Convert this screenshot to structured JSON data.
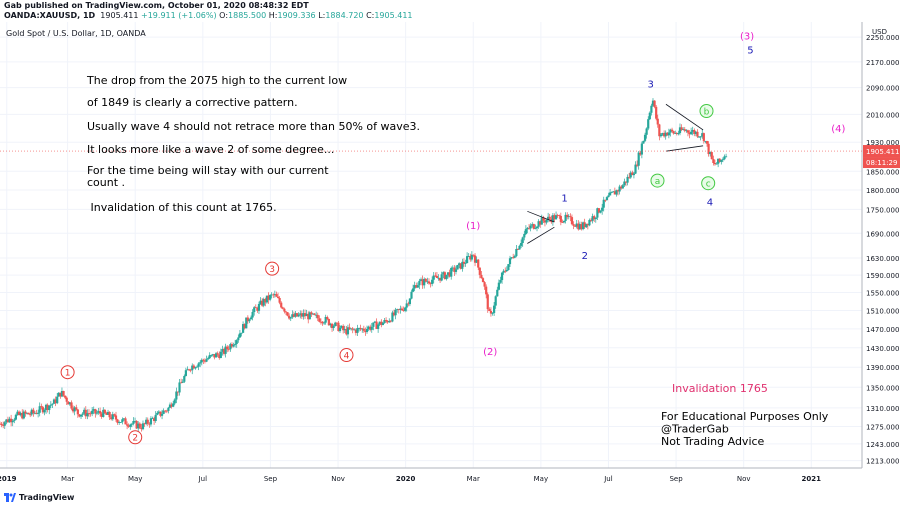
{
  "header": {
    "publisher_line": "Gab published on TradingView.com, October 01, 2020 08:48:32 EDT",
    "symbol": "OANDA:XAUUSD, 1D",
    "last": "1905.411",
    "change": "+19.911 (+1.06%)",
    "o_label": "O:",
    "o_val": "1885.500",
    "h_label": "H:",
    "h_val": "1909.336",
    "l_label": "L:",
    "l_val": "1884.720",
    "c_label": "C:",
    "c_val": "1905.411"
  },
  "footer": {
    "logo_text": "TradingView"
  },
  "colors": {
    "up": "#26a69a",
    "down": "#ef5350",
    "magenta": "#e91ec9",
    "blue": "#1a1ab5",
    "red_circle": "#e53935",
    "green_circle": "#43c943",
    "invalid": "#e0306e"
  },
  "chart_data": {
    "type": "candlestick",
    "title": "Gold Spot / U.S. Dollar, 1D, OANDA",
    "currency_label": "USD",
    "ylim": [
      1200,
      2300
    ],
    "y_ticks": [
      1213,
      1243,
      1275,
      1310,
      1350,
      1390,
      1430,
      1470,
      1510,
      1550,
      1590,
      1630,
      1690,
      1750,
      1800,
      1850,
      1930,
      2010,
      2090,
      2170,
      2250
    ],
    "y_tick_labels": [
      "1213.000",
      "1243.000",
      "1275.000",
      "1310.000",
      "1350.000",
      "1390.000",
      "1430.000",
      "1470.000",
      "1510.000",
      "1550.000",
      "1590.000",
      "1630.000",
      "1690.000",
      "1750.000",
      "1800.000",
      "1850.000",
      "1930.000",
      "2010.000",
      "2090.000",
      "2170.000",
      "2250.000"
    ],
    "x_range_months": [
      0,
      25.5
    ],
    "x_ticks": [
      {
        "m": 0.2,
        "label": "2019"
      },
      {
        "m": 2,
        "label": "Mar"
      },
      {
        "m": 4,
        "label": "May"
      },
      {
        "m": 6,
        "label": "Jul"
      },
      {
        "m": 8,
        "label": "Sep"
      },
      {
        "m": 10,
        "label": "Nov"
      },
      {
        "m": 12,
        "label": "2020"
      },
      {
        "m": 14,
        "label": "Mar"
      },
      {
        "m": 16,
        "label": "May"
      },
      {
        "m": 18,
        "label": "Jul"
      },
      {
        "m": 20,
        "label": "Sep"
      },
      {
        "m": 22,
        "label": "Nov"
      },
      {
        "m": 24,
        "label": "2021"
      }
    ],
    "price_path": [
      [
        0,
        1280
      ],
      [
        0.5,
        1295
      ],
      [
        1,
        1300
      ],
      [
        1.6,
        1320
      ],
      [
        1.8,
        1340
      ],
      [
        2.3,
        1300
      ],
      [
        3,
        1300
      ],
      [
        3.6,
        1285
      ],
      [
        4.2,
        1275
      ],
      [
        5,
        1310
      ],
      [
        5.6,
        1390
      ],
      [
        6.2,
        1410
      ],
      [
        6.6,
        1420
      ],
      [
        7,
        1450
      ],
      [
        7.4,
        1500
      ],
      [
        7.8,
        1530
      ],
      [
        8.1,
        1545
      ],
      [
        8.6,
        1495
      ],
      [
        9,
        1500
      ],
      [
        9.6,
        1490
      ],
      [
        10.2,
        1465
      ],
      [
        10.8,
        1470
      ],
      [
        11.4,
        1485
      ],
      [
        12,
        1520
      ],
      [
        12.3,
        1570
      ],
      [
        12.8,
        1580
      ],
      [
        13.2,
        1590
      ],
      [
        13.6,
        1610
      ],
      [
        14,
        1640
      ],
      [
        14.3,
        1575
      ],
      [
        14.5,
        1490
      ],
      [
        14.8,
        1580
      ],
      [
        15.2,
        1640
      ],
      [
        15.6,
        1700
      ],
      [
        16,
        1720
      ],
      [
        16.4,
        1730
      ],
      [
        16.8,
        1725
      ],
      [
        17.2,
        1705
      ],
      [
        17.6,
        1735
      ],
      [
        18,
        1780
      ],
      [
        18.4,
        1810
      ],
      [
        18.8,
        1860
      ],
      [
        19.1,
        1960
      ],
      [
        19.3,
        2060
      ],
      [
        19.5,
        1950
      ],
      [
        19.8,
        1960
      ],
      [
        20,
        1955
      ],
      [
        20.2,
        1965
      ],
      [
        20.5,
        1960
      ],
      [
        20.8,
        1950
      ],
      [
        21.1,
        1868
      ],
      [
        21.3,
        1875
      ],
      [
        21.5,
        1905
      ]
    ],
    "labels": [
      {
        "text": "1",
        "style": "red-circle",
        "m": 2.0,
        "price": 1380
      },
      {
        "text": "2",
        "style": "red-circle",
        "m": 4.0,
        "price": 1255
      },
      {
        "text": "3",
        "style": "red-circle",
        "m": 8.05,
        "price": 1605
      },
      {
        "text": "4",
        "style": "red-circle",
        "m": 10.25,
        "price": 1415
      },
      {
        "text": "(1)",
        "style": "magenta",
        "m": 14.0,
        "price": 1710
      },
      {
        "text": "(2)",
        "style": "magenta",
        "m": 14.5,
        "price": 1423
      },
      {
        "text": "(3)",
        "style": "magenta",
        "m": 22.1,
        "price": 2255
      },
      {
        "text": "(4)",
        "style": "magenta",
        "m": 24.8,
        "price": 1970
      },
      {
        "text": "1",
        "style": "blue",
        "m": 16.7,
        "price": 1780
      },
      {
        "text": "2",
        "style": "blue",
        "m": 17.3,
        "price": 1637
      },
      {
        "text": "3",
        "style": "blue",
        "m": 19.25,
        "price": 2102
      },
      {
        "text": "4",
        "style": "blue",
        "m": 21.0,
        "price": 1770
      },
      {
        "text": "5",
        "style": "blue",
        "m": 22.2,
        "price": 2210
      },
      {
        "text": "a",
        "style": "green-circle",
        "m": 19.45,
        "price": 1825
      },
      {
        "text": "b",
        "style": "green-circle",
        "m": 20.9,
        "price": 2020
      },
      {
        "text": "c",
        "style": "green-circle",
        "m": 20.95,
        "price": 1818
      }
    ],
    "annotation_lines": [
      "The drop from the 2075 high to the current low",
      "of 1849 is clearly a corrective pattern.",
      "Usually wave 4 should not retrace more than 50% of wave3.",
      "It looks more like a wave 2 of some degree...",
      "For the time being will stay with our current",
      "count .",
      " Invalidation of this count at 1765."
    ],
    "invalidation_label": "Invalidation 1765",
    "disclaimer_lines": [
      "For Educational Purposes Only",
      "@TraderGab",
      "Not Trading Advice"
    ],
    "current_price_label": "1905.411",
    "countdown_label": "08:11:29"
  }
}
